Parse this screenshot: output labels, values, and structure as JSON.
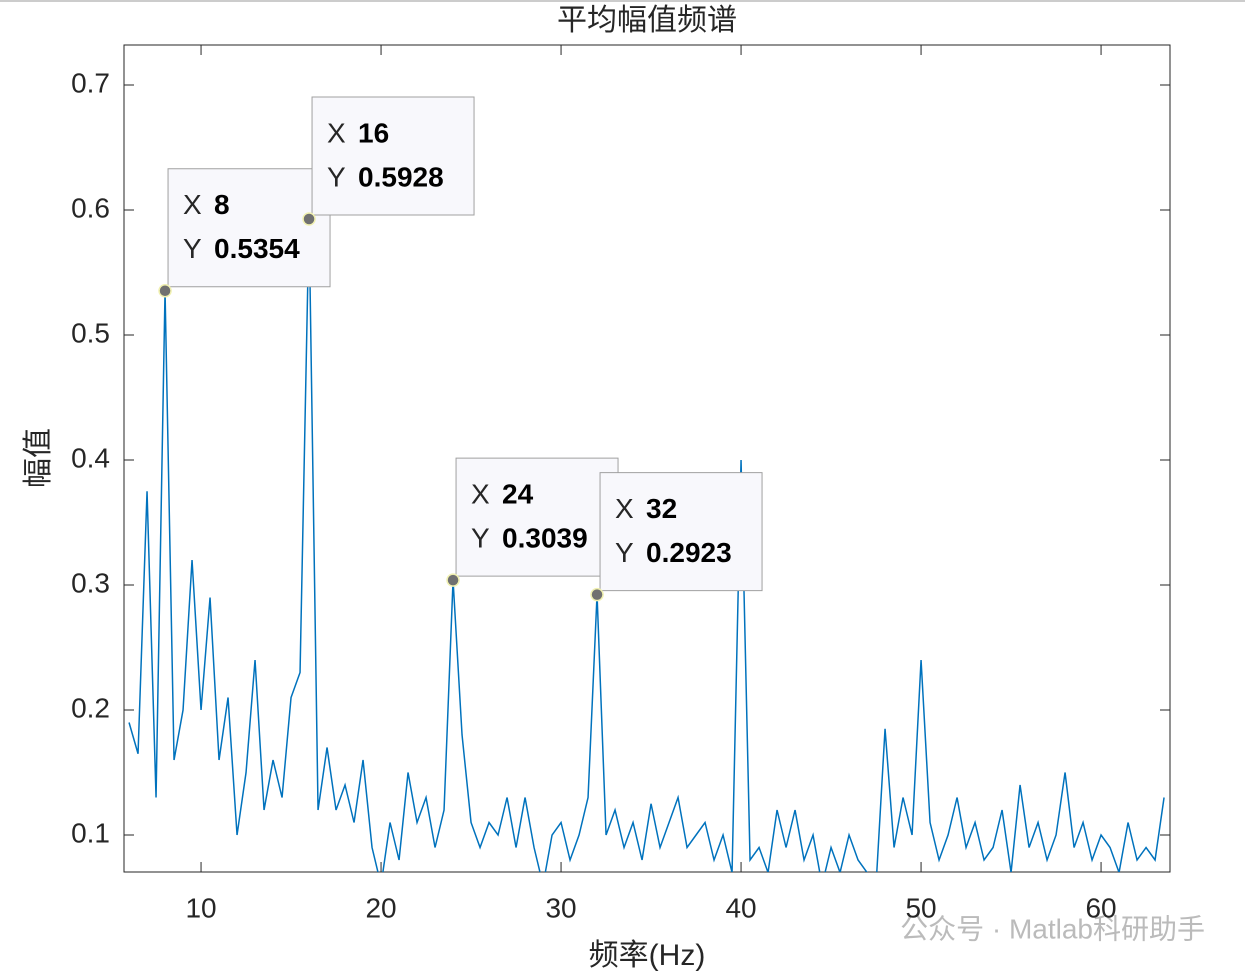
{
  "chart_data": {
    "type": "line",
    "title": "平均幅值频谱",
    "xlabel": "频率(Hz)",
    "ylabel": "幅值",
    "color": "#0072bd",
    "x": [
      6,
      6.5,
      7,
      7.5,
      8,
      8.5,
      9,
      9.5,
      10,
      10.5,
      11,
      11.5,
      12,
      12.5,
      13,
      13.5,
      14,
      14.5,
      15,
      15.5,
      16,
      16.5,
      17,
      17.5,
      18,
      18.5,
      19,
      19.5,
      20,
      20.5,
      21,
      21.5,
      22,
      22.5,
      23,
      23.5,
      24,
      24.5,
      25,
      25.5,
      26,
      26.5,
      27,
      27.5,
      28,
      28.5,
      29,
      29.5,
      30,
      30.5,
      31,
      31.5,
      32,
      32.5,
      33,
      33.5,
      34,
      34.5,
      35,
      35.5,
      36,
      36.5,
      37,
      37.5,
      38,
      38.5,
      39,
      39.5,
      40,
      40.5,
      41,
      41.5,
      42,
      42.5,
      43,
      43.5,
      44,
      44.5,
      45,
      45.5,
      46,
      46.5,
      47,
      47.5,
      48,
      48.5,
      49,
      49.5,
      50,
      50.5,
      51,
      51.5,
      52,
      52.5,
      53,
      53.5,
      54,
      54.5,
      55,
      55.5,
      56,
      56.5,
      57,
      57.5,
      58,
      58.5,
      59,
      59.5,
      60,
      60.5,
      61,
      61.5,
      62,
      62.5,
      63,
      63.5
    ],
    "values": [
      0.19,
      0.165,
      0.375,
      0.13,
      0.5354,
      0.16,
      0.2,
      0.32,
      0.2,
      0.29,
      0.16,
      0.21,
      0.1,
      0.15,
      0.24,
      0.12,
      0.16,
      0.13,
      0.21,
      0.23,
      0.5928,
      0.12,
      0.17,
      0.12,
      0.14,
      0.11,
      0.16,
      0.09,
      0.06,
      0.11,
      0.08,
      0.15,
      0.11,
      0.13,
      0.09,
      0.12,
      0.3039,
      0.18,
      0.11,
      0.09,
      0.11,
      0.1,
      0.13,
      0.09,
      0.13,
      0.09,
      0.06,
      0.1,
      0.11,
      0.08,
      0.1,
      0.13,
      0.2923,
      0.1,
      0.12,
      0.09,
      0.11,
      0.08,
      0.125,
      0.09,
      0.11,
      0.13,
      0.09,
      0.1,
      0.11,
      0.08,
      0.1,
      0.07,
      0.4,
      0.08,
      0.09,
      0.07,
      0.12,
      0.09,
      0.12,
      0.08,
      0.1,
      0.06,
      0.09,
      0.07,
      0.1,
      0.08,
      0.07,
      0.06,
      0.185,
      0.09,
      0.13,
      0.1,
      0.24,
      0.11,
      0.08,
      0.1,
      0.13,
      0.09,
      0.11,
      0.08,
      0.09,
      0.12,
      0.07,
      0.14,
      0.09,
      0.11,
      0.08,
      0.1,
      0.15,
      0.09,
      0.11,
      0.08,
      0.1,
      0.09,
      0.07,
      0.11,
      0.08,
      0.09,
      0.08,
      0.13
    ],
    "xlim": [
      5.72,
      63.83
    ],
    "ylim": [
      0.0704,
      0.732
    ],
    "xticks": [
      10,
      20,
      30,
      40,
      50,
      60
    ],
    "yticks": [
      0.1,
      0.2,
      0.3,
      0.4,
      0.5,
      0.6,
      0.7
    ],
    "datatip_x_prefix": "X",
    "datatip_y_prefix": "Y",
    "datatips": [
      {
        "x": 8,
        "y": 0.5354
      },
      {
        "x": 16,
        "y": 0.5928
      },
      {
        "x": 24,
        "y": 0.3039
      },
      {
        "x": 32,
        "y": 0.2923
      }
    ],
    "watermark": "公众号 · Matlab科研助手"
  }
}
